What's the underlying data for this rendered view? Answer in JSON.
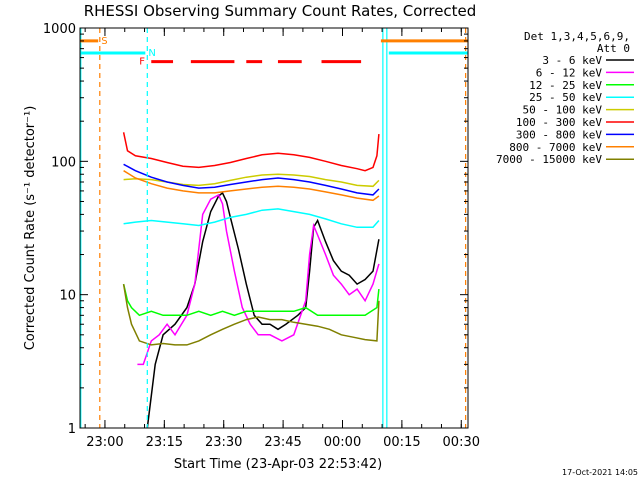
{
  "chart_data": {
    "type": "line",
    "title": "RHESSI Observing Summary Count Rates, Corrected",
    "xlabel": "Start Time (23-Apr-03 22:53:42)",
    "ylabel": "Corrected Count Rate (s⁻¹ detector⁻¹)",
    "timestamp": "17-Oct-2021 14:05",
    "x_unit": "minutes since 22:53:42",
    "xlim": [
      0,
      98
    ],
    "ylim": [
      1,
      1000
    ],
    "y_scale": "log",
    "x_ticks": [
      {
        "label": "23:00",
        "x": 6.3
      },
      {
        "label": "23:15",
        "x": 21.3
      },
      {
        "label": "23:30",
        "x": 36.3
      },
      {
        "label": "23:45",
        "x": 51.3
      },
      {
        "label": "00:00",
        "x": 66.3
      },
      {
        "label": "00:15",
        "x": 81.3
      },
      {
        "label": "00:30",
        "x": 96.3
      }
    ],
    "y_ticks": [
      {
        "label": "1",
        "value": 1
      },
      {
        "label": "10",
        "value": 10
      },
      {
        "label": "100",
        "value": 100
      },
      {
        "label": "1000",
        "value": 1000
      }
    ],
    "legend_header": [
      "Det 1,3,4,5,6,9,",
      "Att 0"
    ],
    "legend_position": "right",
    "flags": {
      "S": {
        "label": "S",
        "color": "#ff8000",
        "value": 800,
        "segments": [
          [
            0,
            4.6
          ],
          [
            76,
            98
          ]
        ]
      },
      "N": {
        "label": "N",
        "color": "#00ffff",
        "value": 650,
        "segments": [
          [
            0,
            16.5
          ],
          [
            78,
            98
          ]
        ]
      },
      "F": {
        "label": "F",
        "color": "#ff0000",
        "value": 560,
        "segments": [
          [
            18,
            23.5
          ],
          [
            28,
            39
          ],
          [
            42,
            46
          ],
          [
            50,
            56
          ],
          [
            61,
            71
          ]
        ]
      }
    },
    "vlines": [
      {
        "x": 0.2,
        "color": "#00ffff",
        "dash": false
      },
      {
        "x": 5.0,
        "color": "#ff8000",
        "dash": true
      },
      {
        "x": 17.0,
        "color": "#00ffff",
        "dash": true
      },
      {
        "x": 76.5,
        "color": "#00ffff",
        "dash": false
      },
      {
        "x": 77.5,
        "color": "#00ffff",
        "dash": false
      },
      {
        "x": 97.4,
        "color": "#ff8000",
        "dash": true
      }
    ],
    "series": [
      {
        "name": "3 - 6 keV",
        "color": "#000000",
        "x": [
          17,
          19,
          21,
          24,
          27,
          29,
          31,
          33,
          35,
          36,
          37,
          38,
          40,
          42,
          44,
          46,
          48,
          50,
          52,
          55,
          57,
          58,
          59,
          60,
          62,
          64,
          66,
          68,
          70,
          72,
          74,
          75.5
        ],
        "y": [
          1,
          3,
          5,
          6,
          8,
          12,
          25,
          42,
          55,
          58,
          50,
          38,
          22,
          12,
          7,
          6,
          6,
          5.5,
          6,
          7,
          8,
          15,
          32,
          36,
          25,
          18,
          15,
          14,
          12,
          13,
          15,
          26
        ]
      },
      {
        "name": "6 - 12 keV",
        "color": "#ff00ff",
        "x": [
          14.5,
          16,
          18,
          20,
          22,
          24,
          27,
          29,
          31,
          33,
          35,
          36,
          37,
          39,
          41,
          43,
          45,
          48,
          51,
          54,
          57,
          58,
          59,
          60,
          62,
          64,
          66,
          68,
          70,
          72,
          74,
          75.5
        ],
        "y": [
          3,
          3,
          4.5,
          5,
          6,
          5,
          7,
          12,
          40,
          52,
          56,
          48,
          30,
          15,
          8,
          6,
          5,
          5,
          4.5,
          5,
          9,
          20,
          33,
          28,
          20,
          14,
          12,
          10,
          11,
          9,
          12,
          17
        ]
      },
      {
        "name": "12 - 25 keV",
        "color": "#00ff00",
        "x": [
          11,
          12,
          13,
          15,
          18,
          21,
          24,
          27,
          30,
          33,
          36,
          39,
          42,
          45,
          48,
          51,
          54,
          57,
          60,
          63,
          66,
          69,
          72,
          75,
          75.5
        ],
        "y": [
          12,
          9,
          8,
          7,
          7.5,
          7,
          7,
          7,
          7.5,
          7,
          7.5,
          7,
          7.5,
          7.5,
          7.5,
          7.5,
          7.5,
          8,
          7,
          7,
          7,
          7,
          7,
          8,
          11
        ]
      },
      {
        "name": "25 - 50 keV",
        "color": "#00ffff",
        "x": [
          11,
          14,
          18,
          22,
          26,
          30,
          34,
          38,
          42,
          46,
          50,
          54,
          58,
          62,
          66,
          70,
          74,
          75.5
        ],
        "y": [
          34,
          35,
          36,
          35,
          34,
          33,
          35,
          38,
          40,
          43,
          44,
          42,
          40,
          37,
          34,
          32,
          32,
          36
        ]
      },
      {
        "name": "50 - 100 keV",
        "color": "#cccc00",
        "x": [
          11,
          14,
          18,
          22,
          26,
          30,
          34,
          38,
          42,
          46,
          50,
          54,
          58,
          62,
          66,
          70,
          74,
          75.5
        ],
        "y": [
          73,
          74,
          73,
          70,
          67,
          66,
          68,
          72,
          76,
          79,
          80,
          79,
          77,
          73,
          70,
          66,
          65,
          72
        ]
      },
      {
        "name": "100 - 300 keV",
        "color": "#ff0000",
        "x": [
          11,
          12,
          14,
          18,
          22,
          26,
          30,
          34,
          38,
          42,
          46,
          50,
          54,
          58,
          62,
          66,
          70,
          72,
          74,
          75,
          75.5
        ],
        "y": [
          165,
          120,
          110,
          105,
          98,
          92,
          90,
          93,
          98,
          105,
          112,
          115,
          112,
          107,
          100,
          93,
          88,
          85,
          90,
          110,
          160
        ]
      },
      {
        "name": "300 - 800 keV",
        "color": "#0000ff",
        "x": [
          11,
          14,
          18,
          22,
          26,
          30,
          34,
          38,
          42,
          46,
          50,
          54,
          58,
          62,
          66,
          70,
          74,
          75.5
        ],
        "y": [
          95,
          85,
          76,
          70,
          66,
          63,
          64,
          67,
          70,
          73,
          75,
          73,
          70,
          66,
          62,
          58,
          56,
          62
        ]
      },
      {
        "name": "800 - 7000 keV",
        "color": "#ff8000",
        "x": [
          11,
          14,
          18,
          22,
          26,
          30,
          34,
          38,
          42,
          46,
          50,
          54,
          58,
          62,
          66,
          70,
          74,
          75.5
        ],
        "y": [
          85,
          75,
          68,
          63,
          60,
          58,
          58,
          60,
          62,
          64,
          65,
          64,
          62,
          59,
          56,
          53,
          51,
          55
        ]
      },
      {
        "name": "7000 - 15000 keV",
        "color": "#808000",
        "x": [
          11,
          12,
          13,
          15,
          18,
          21,
          24,
          27,
          30,
          33,
          36,
          39,
          42,
          45,
          48,
          51,
          54,
          57,
          60,
          63,
          66,
          69,
          72,
          75,
          75.5
        ],
        "y": [
          12,
          8,
          6,
          4.5,
          4.2,
          4.3,
          4.2,
          4.2,
          4.5,
          5,
          5.5,
          6,
          6.5,
          6.8,
          6.5,
          6.5,
          6.2,
          6,
          5.8,
          5.5,
          5,
          4.8,
          4.6,
          4.5,
          9
        ]
      }
    ]
  }
}
